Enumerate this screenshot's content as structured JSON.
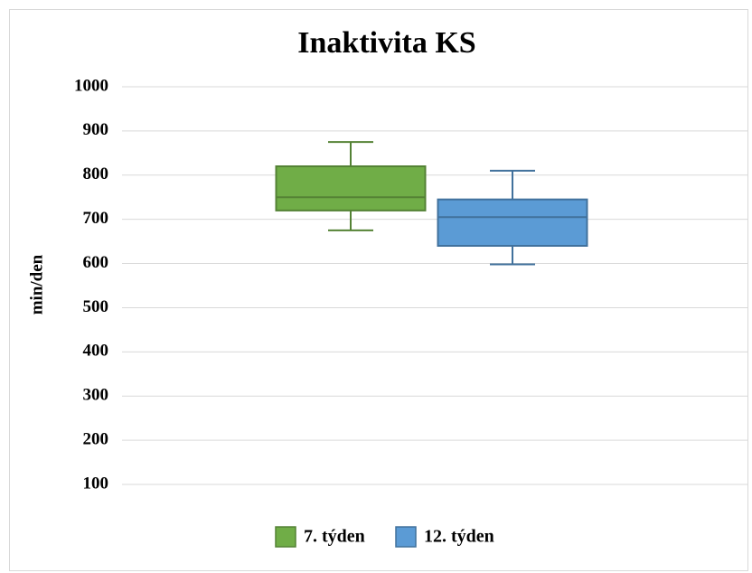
{
  "chart_data": {
    "type": "box",
    "title": "Inaktivita KS",
    "y_label": "min/den",
    "ylim": [
      100,
      1000
    ],
    "yticks": [
      100,
      200,
      300,
      400,
      500,
      600,
      700,
      800,
      900,
      1000
    ],
    "grid": true,
    "legend": "bottom",
    "series": [
      {
        "name": "7. týden",
        "color": "#70ad47",
        "edge": "#548235",
        "min": 675,
        "q1": 720,
        "median": 750,
        "q3": 820,
        "max": 875
      },
      {
        "name": "12. týden",
        "color": "#5b9bd5",
        "edge": "#41719c",
        "min": 598,
        "q1": 640,
        "median": 705,
        "q3": 745,
        "max": 810
      }
    ]
  }
}
